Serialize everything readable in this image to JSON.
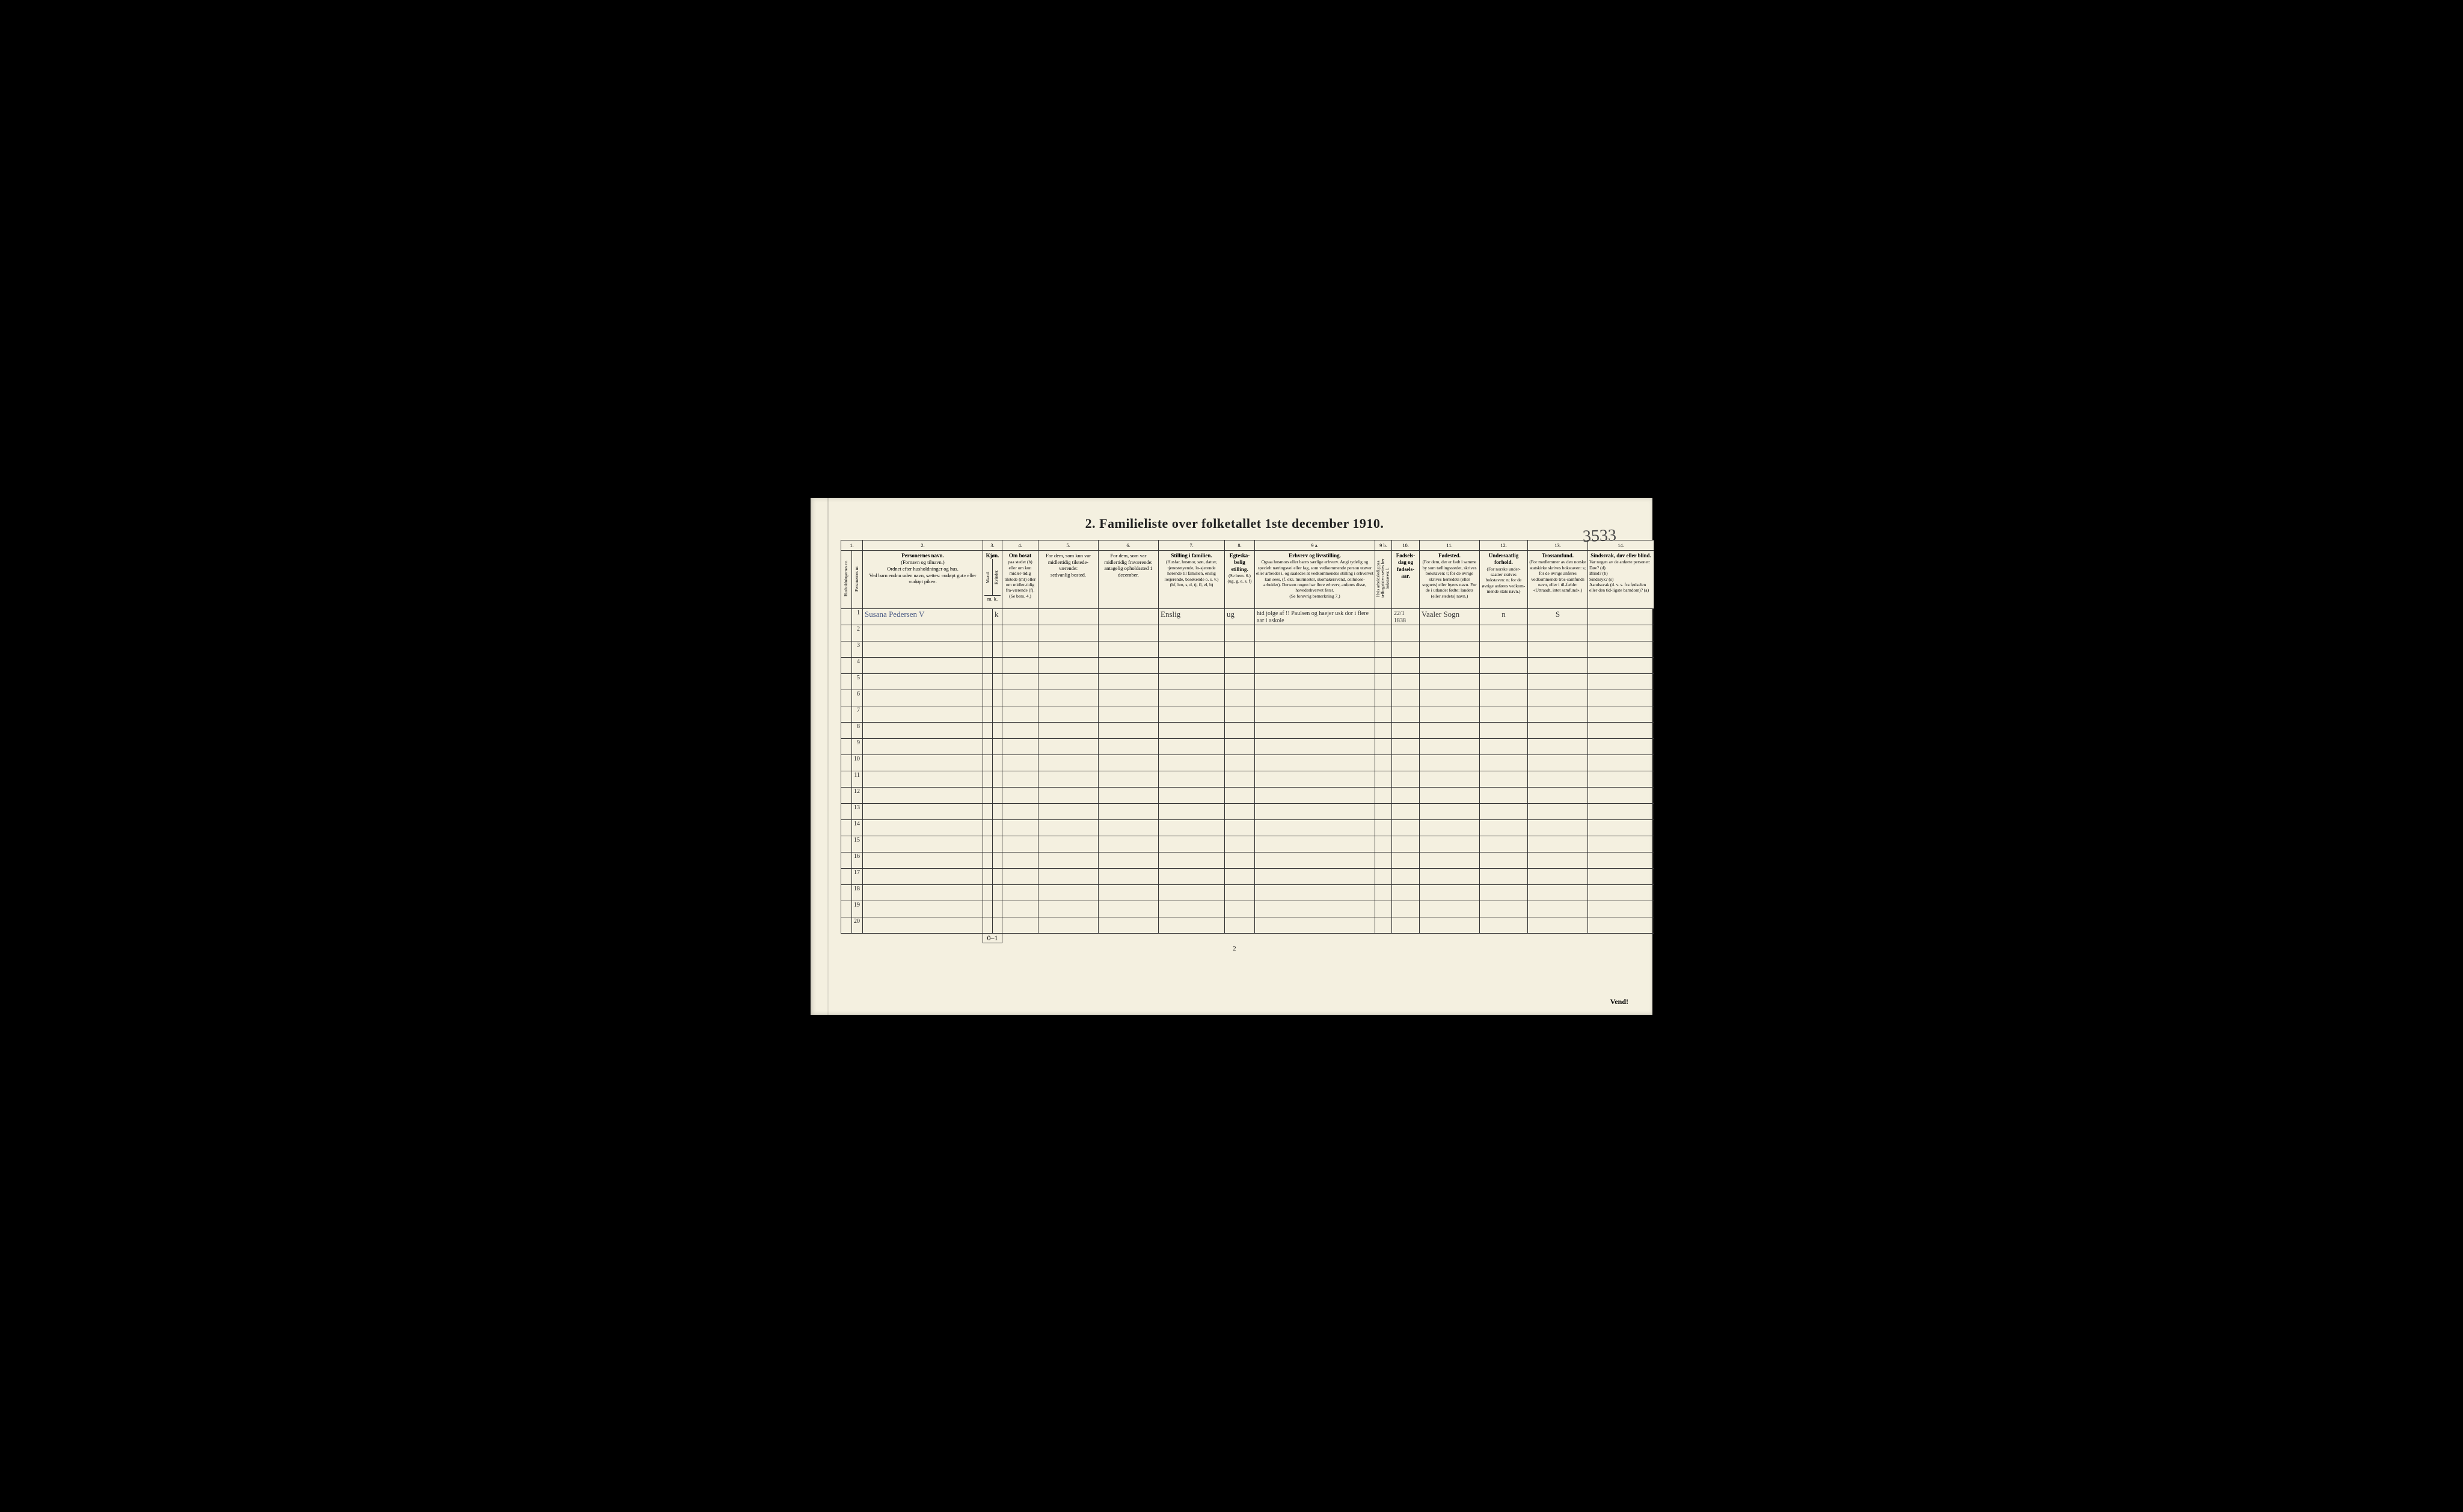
{
  "title": "2.  Familieliste over folketallet 1ste december 1910.",
  "corner_note": "3533",
  "page_number": "2",
  "vend": "Vend!",
  "columns": {
    "c1": "1.",
    "c2": "2.",
    "c3": "3.",
    "c4": "4.",
    "c5": "5.",
    "c6": "6.",
    "c7": "7.",
    "c8": "8.",
    "c9a": "9 a.",
    "c9b": "9 b.",
    "c10": "10.",
    "c11": "11.",
    "c12": "12.",
    "c13": "13.",
    "c14": "14."
  },
  "headers": {
    "h1a": "Husholdningernes nr.",
    "h1b": "Personernes nr.",
    "h2_title": "Personernes navn.",
    "h2_body": "(Fornavn og tilnavn.)\nOrdnet efter husholdninger og hus.\nVed barn endnu uden navn, sættes: «udøpt gut» eller «udøpt pike».",
    "h3_title": "Kjøn.",
    "h3a": "Mænd.",
    "h3b": "Kvinder.",
    "h3_foot": "m.  k.",
    "h4_title": "Om bosat",
    "h4_body": "paa stedet (b) eller om kun midler-tidig tilstede (mt) eller om midler-tidig fra-værende (f).\n(Se bem. 4.)",
    "h5_body": "For dem, som kun var midlertidig tilstede-værende:\nsedvanlig bosted.",
    "h6_body": "For dem, som var midlertidig fraværende:\nantagelig opholdssted 1 december.",
    "h7_title": "Stilling i familien.",
    "h7_body": "(Husfar, husmor, søn, datter, tjenestetyende, lo-sjerende hørende til familien, enslig losjerende, besøkende o. s. v.)\n(hf, hm, s, d, tj, fl, el, b)",
    "h8_title": "Egteska-belig stilling.",
    "h8_body": "(Se bem. 6.)\n(ug, g, e, s, f)",
    "h9a_title": "Erhverv og livsstilling.",
    "h9a_body": "Ogsaa husmors eller barns særlige erhverv. Angi tydelig og specielt næringsvei eller fag, som vedkommende person utøver eller arbeider i, og saaledes at vedkommendes stilling i erhvervet kan sees, (f. eks. murmester, skomakersvend, cellulose-arbeider). Dersom nogen har flere erhverv, anføres disse, hovederhvervet først.\n(Se forøvrig bemerkning 7.)",
    "h9b": "Hvis arbeidsledig paa tællingstiden sættes her bokstaven: l.",
    "h10_title": "Fødsels-dag og fødsels-aar.",
    "h11_title": "Fødested.",
    "h11_body": "(For dem, der er født i samme by som tællingsstedet, skrives bokstaven: t; for de øvrige skrives herredets (eller sognets) eller byens navn. For de i utlandet fødte: landets (eller stedets) navn.)",
    "h12_title": "Undersaatlig forhold.",
    "h12_body": "(For norske under-saatter skrives bokstaven: n; for de øvrige anføres vedkom-mende stats navn.)",
    "h13_title": "Trossamfund.",
    "h13_body": "(For medlemmer av den norske statskirke skrives bokstaven: s; for de øvrige anføres vedkommende tros-samfunds navn, eller i til-fælde: «Uttraadt, intet samfund».)",
    "h14_title": "Sindssvak, døv eller blind.",
    "h14_body": "Var nogen av de anførte personer:\nDøv?        (d)\nBlind?       (b)\nSindssyk?  (s)\nAandssvak (d. v. s. fra fødselen eller den tid-ligste barndom)?  (a)"
  },
  "row1": {
    "num": "1",
    "name": "Susana Pedersen V",
    "sex": "k",
    "stilling": "Enslig",
    "egte": "ug",
    "erhverv": "hid jolge af !! Paulsen og haejer usk dor i flere aar i askole",
    "dob": "22/1 1838",
    "fodested": "Vaaler Sogn",
    "undersaat": "n",
    "tros": "S"
  },
  "row_numbers": [
    "1",
    "2",
    "3",
    "4",
    "5",
    "6",
    "7",
    "8",
    "9",
    "10",
    "11",
    "12",
    "13",
    "14",
    "15",
    "16",
    "17",
    "18",
    "19",
    "20"
  ],
  "tally": "0–1",
  "col_widths": {
    "c1a": 18,
    "c1b": 18,
    "c2": 200,
    "c3a": 16,
    "c3b": 16,
    "c4": 60,
    "c5": 100,
    "c6": 100,
    "c7": 110,
    "c8": 50,
    "c9a": 200,
    "c9b": 28,
    "c10": 46,
    "c11": 100,
    "c12": 80,
    "c13": 100,
    "c14": 110
  },
  "colors": {
    "paper": "#f4f0e0",
    "ink": "#222222",
    "border": "#333333",
    "handwriting": "#3a3a3a",
    "handwriting_blue": "#4a5a85",
    "shadow": "#000000"
  },
  "fonts": {
    "title_size": 22,
    "header_size": 8.5,
    "body_size": 9,
    "handwriting_size": 13
  }
}
